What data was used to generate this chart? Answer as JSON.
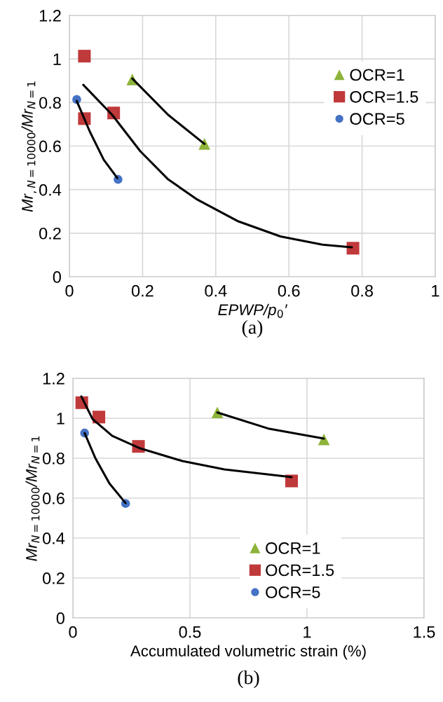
{
  "chart_data": [
    {
      "type": "scatter",
      "title": "(a)",
      "xlabel": "EPWP/p$_{0}$′",
      "ylabel": "Mr$_{,N=10000}$/Mr$_{N=1}$",
      "xlim": [
        0,
        1
      ],
      "ylim": [
        0,
        1.2
      ],
      "xticks": [
        0,
        0.2,
        0.4,
        0.6,
        0.8,
        1
      ],
      "yticks": [
        0,
        0.2,
        0.4,
        0.6,
        0.8,
        1,
        1.2
      ],
      "grid": true,
      "legend": "top right",
      "series": [
        {
          "name": "OCR=1",
          "color": "#8db33a",
          "marker": "triangle",
          "x": [
            0.172,
            0.369
          ],
          "values": [
            0.906,
            0.61
          ]
        },
        {
          "name": "OCR=1.5",
          "color": "#c0393b",
          "marker": "square",
          "x": [
            0.041,
            0.041,
            0.121,
            0.775
          ],
          "values": [
            1.013,
            0.726,
            0.752,
            0.131
          ]
        },
        {
          "name": "OCR=5",
          "color": "#4472c4",
          "marker": "circle",
          "x": [
            0.02,
            0.133
          ],
          "values": [
            0.814,
            0.447
          ]
        },
        {
          "type": "line",
          "color": "#000000",
          "marker": "none",
          "x": [
            0.172,
            0.27,
            0.369
          ],
          "values": [
            0.91,
            0.743,
            0.61
          ]
        },
        {
          "type": "line",
          "color": "#000000",
          "marker": "none",
          "x": [
            0.038,
            0.117,
            0.194,
            0.27,
            0.347,
            0.462,
            0.577,
            0.692,
            0.772
          ],
          "values": [
            0.881,
            0.743,
            0.576,
            0.447,
            0.357,
            0.254,
            0.185,
            0.147,
            0.135
          ]
        },
        {
          "type": "line",
          "color": "#000000",
          "marker": "none",
          "x": [
            0.02,
            0.056,
            0.094,
            0.131
          ],
          "values": [
            0.807,
            0.666,
            0.537,
            0.453
          ]
        }
      ]
    },
    {
      "type": "scatter",
      "title": "(b)",
      "xlabel": "Accumulated volumetric strain (%)",
      "ylabel": "Mr$_{N=10000}$/Mr$_{N=1}$",
      "xlim": [
        0,
        1.5
      ],
      "ylim": [
        0,
        1.2
      ],
      "xticks": [
        0,
        0.5,
        1,
        1.5
      ],
      "yticks": [
        0,
        0.2,
        0.4,
        0.6,
        0.8,
        1,
        1.2
      ],
      "grid": true,
      "legend": "bottom",
      "series": [
        {
          "name": "OCR=1",
          "color": "#8db33a",
          "marker": "triangle",
          "x": [
            0.617,
            1.072
          ],
          "values": [
            1.029,
            0.894
          ]
        },
        {
          "name": "OCR=1.5",
          "color": "#c0393b",
          "marker": "square",
          "x": [
            0.038,
            0.111,
            0.28,
            0.934
          ],
          "values": [
            1.078,
            1.006,
            0.859,
            0.686
          ]
        },
        {
          "name": "OCR=5",
          "color": "#4472c4",
          "marker": "circle",
          "x": [
            0.05,
            0.225
          ],
          "values": [
            0.926,
            0.573
          ]
        },
        {
          "type": "line",
          "color": "#000000",
          "marker": "none",
          "x": [
            0.617,
            0.839,
            1.072
          ],
          "values": [
            1.029,
            0.947,
            0.898
          ]
        },
        {
          "type": "line",
          "color": "#000000",
          "marker": "none",
          "x": [
            0.036,
            0.084,
            0.168,
            0.288,
            0.467,
            0.647,
            0.934
          ],
          "values": [
            1.109,
            0.996,
            0.912,
            0.849,
            0.786,
            0.744,
            0.705
          ]
        },
        {
          "type": "line",
          "color": "#000000",
          "marker": "none",
          "x": [
            0.05,
            0.096,
            0.156,
            0.225
          ],
          "values": [
            0.926,
            0.8,
            0.674,
            0.575
          ]
        }
      ]
    }
  ]
}
